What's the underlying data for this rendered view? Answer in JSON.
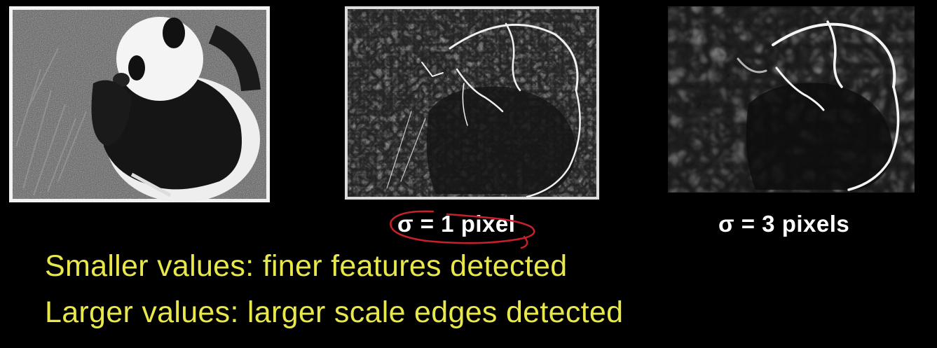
{
  "captions": {
    "sigma_1": "σ = 1 pixel",
    "sigma_3": "σ = 3 pixels"
  },
  "notes": {
    "smaller": "Smaller values: finer features detected",
    "larger": "Larger values: larger scale edges detected"
  },
  "colors": {
    "background": "#000000",
    "caption": "#ffffff",
    "note": "#e8e84a",
    "annotation_ink": "#c8202a"
  },
  "images": {
    "original": "panda-photo",
    "edges_fine": "edge-map-sigma-1",
    "edges_coarse": "edge-map-sigma-3"
  }
}
